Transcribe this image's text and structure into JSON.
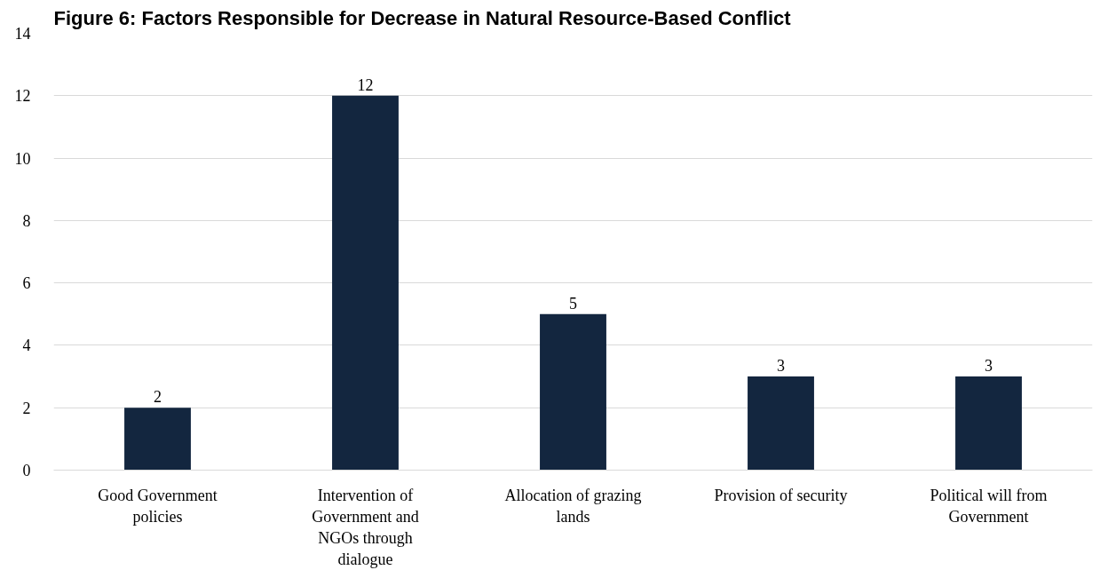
{
  "chart_data": {
    "type": "bar",
    "title": "Figure 6: Factors Responsible for Decrease in Natural Resource-Based Conflict",
    "categories": [
      "Good Government policies",
      "Intervention of Government and NGOs through dialogue",
      "Allocation of grazing lands",
      "Provision of security",
      "Political will from Government"
    ],
    "values": [
      2,
      12,
      5,
      3,
      3
    ],
    "color": "#13263f",
    "ylim": [
      0,
      14
    ],
    "yticks": [
      0,
      2,
      4,
      6,
      8,
      10,
      12,
      14
    ],
    "grid": "y",
    "data_labels": true
  }
}
